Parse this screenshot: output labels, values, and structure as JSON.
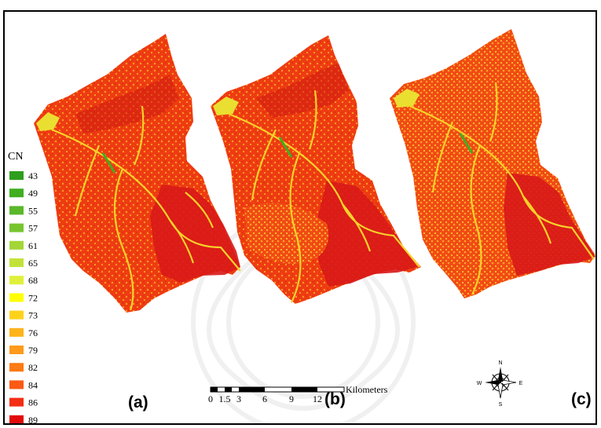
{
  "legend": {
    "title": "CN",
    "items": [
      {
        "value": "43",
        "color": "#2e9e1e"
      },
      {
        "value": "49",
        "color": "#3fae20"
      },
      {
        "value": "55",
        "color": "#5ab82a"
      },
      {
        "value": "57",
        "color": "#77c52e"
      },
      {
        "value": "61",
        "color": "#a3d636"
      },
      {
        "value": "65",
        "color": "#c2e23a"
      },
      {
        "value": "68",
        "color": "#dff03a"
      },
      {
        "value": "72",
        "color": "#ffff00"
      },
      {
        "value": "73",
        "color": "#ffd21a"
      },
      {
        "value": "76",
        "color": "#ffb31a"
      },
      {
        "value": "79",
        "color": "#ff9a1a"
      },
      {
        "value": "82",
        "color": "#ff7a14"
      },
      {
        "value": "84",
        "color": "#fb5a14"
      },
      {
        "value": "86",
        "color": "#f22d14"
      },
      {
        "value": "89",
        "color": "#e20a0a"
      }
    ]
  },
  "panels": [
    {
      "label": "(a)"
    },
    {
      "label": "(b)"
    },
    {
      "label": "(c)"
    }
  ],
  "scalebar": {
    "ticks": [
      "0",
      "1.5",
      "3",
      "6",
      "9",
      "12"
    ],
    "unit": "Kilometers"
  },
  "compass": {
    "n": "N",
    "s": "S",
    "e": "E",
    "w": "W"
  },
  "colors": {
    "base": "#ee3a10",
    "highlight": "#ffb020",
    "channel": "#f5d52a",
    "dark": "#d41212"
  }
}
